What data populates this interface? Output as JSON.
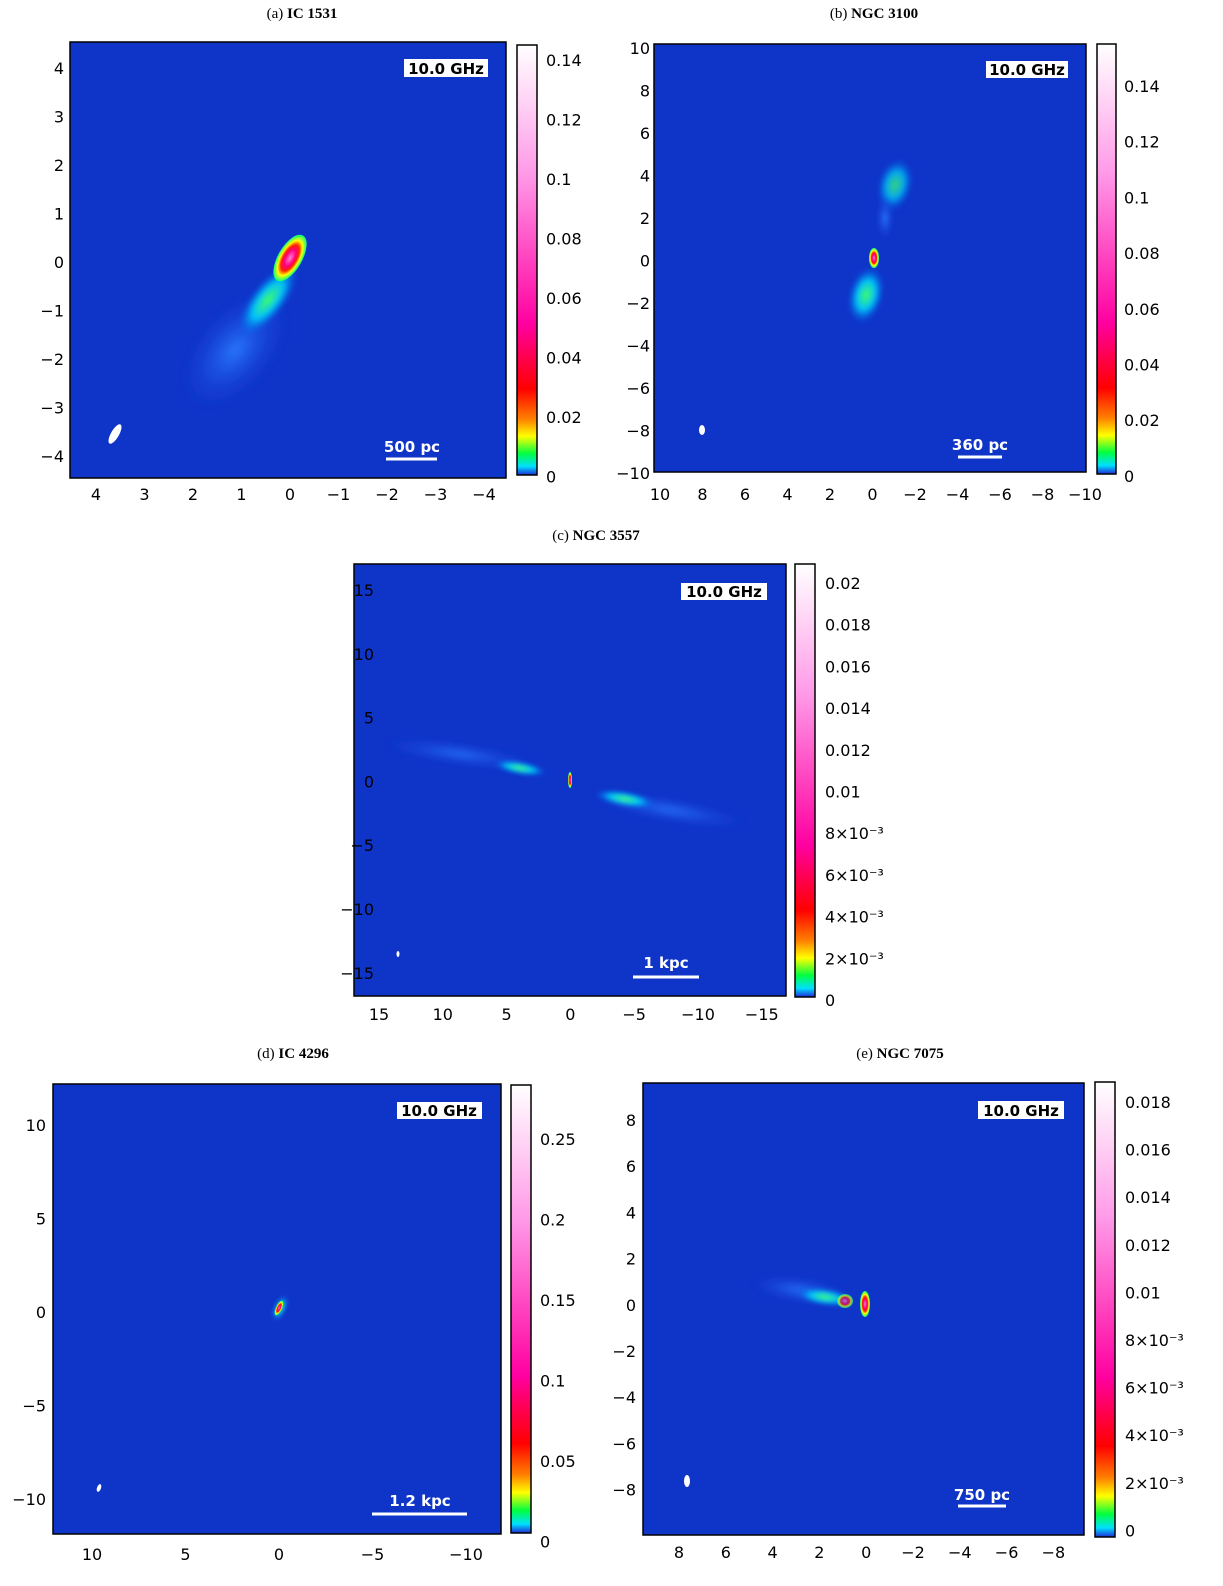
{
  "figure": {
    "panels": [
      {
        "id": "a",
        "caption_prefix": "(a)",
        "caption_name": "IC 1531",
        "frequency_label": "10.0 GHz",
        "scale_bar_label": "500 pc",
        "x_ticks": [
          "4",
          "3",
          "2",
          "1",
          "0",
          "−1",
          "−2",
          "−3",
          "−4"
        ],
        "y_ticks": [
          "4",
          "3",
          "2",
          "1",
          "0",
          "−1",
          "−2",
          "−3",
          "−4"
        ],
        "colorbar_ticks": [
          "0.14",
          "0.12",
          "0.1",
          "0.08",
          "0.06",
          "0.04",
          "0.02",
          "0"
        ]
      },
      {
        "id": "b",
        "caption_prefix": "(b)",
        "caption_name": "NGC 3100",
        "frequency_label": "10.0 GHz",
        "scale_bar_label": "360 pc",
        "x_ticks": [
          "10",
          "8",
          "6",
          "4",
          "2",
          "0",
          "−2",
          "−4",
          "−6",
          "−8",
          "−10"
        ],
        "y_ticks": [
          "10",
          "8",
          "6",
          "4",
          "2",
          "0",
          "−2",
          "−4",
          "−6",
          "−8",
          "−10"
        ],
        "colorbar_ticks": [
          "0.14",
          "0.12",
          "0.1",
          "0.08",
          "0.06",
          "0.04",
          "0.02",
          "0"
        ]
      },
      {
        "id": "c",
        "caption_prefix": "(c)",
        "caption_name": "NGC 3557",
        "frequency_label": "10.0 GHz",
        "scale_bar_label": "1 kpc",
        "x_ticks": [
          "15",
          "10",
          "5",
          "0",
          "−5",
          "−10",
          "−15"
        ],
        "y_ticks": [
          "15",
          "10",
          "5",
          "0",
          "−5",
          "−10",
          "−15"
        ],
        "colorbar_ticks": [
          "0.02",
          "0.018",
          "0.016",
          "0.014",
          "0.012",
          "0.01",
          "8×10⁻³",
          "6×10⁻³",
          "4×10⁻³",
          "2×10⁻³",
          "0"
        ]
      },
      {
        "id": "d",
        "caption_prefix": "(d)",
        "caption_name": "IC 4296",
        "frequency_label": "10.0 GHz",
        "scale_bar_label": "1.2 kpc",
        "x_ticks": [
          "10",
          "5",
          "0",
          "−5",
          "−10"
        ],
        "y_ticks": [
          "10",
          "5",
          "0",
          "−5",
          "−10"
        ],
        "colorbar_ticks": [
          "0.25",
          "0.2",
          "0.15",
          "0.1",
          "0.05",
          "0"
        ]
      },
      {
        "id": "e",
        "caption_prefix": "(e)",
        "caption_name": "NGC 7075",
        "frequency_label": "10.0 GHz",
        "scale_bar_label": "750 pc",
        "x_ticks": [
          "8",
          "6",
          "4",
          "2",
          "0",
          "−2",
          "−4",
          "−6",
          "−8"
        ],
        "y_ticks": [
          "8",
          "6",
          "4",
          "2",
          "0",
          "−2",
          "−4",
          "−6",
          "−8"
        ],
        "colorbar_ticks": [
          "0.018",
          "0.016",
          "0.014",
          "0.012",
          "0.01",
          "8×10⁻³",
          "6×10⁻³",
          "4×10⁻³",
          "2×10⁻³",
          "0"
        ]
      }
    ]
  },
  "colors": {
    "background_blue": "#0f34c8",
    "colormap": [
      "#1f2bd6",
      "#00e0ff",
      "#00ff40",
      "#ffff00",
      "#ff8000",
      "#ff0000",
      "#ff00a0",
      "#ff80e0",
      "#ffffff"
    ]
  }
}
